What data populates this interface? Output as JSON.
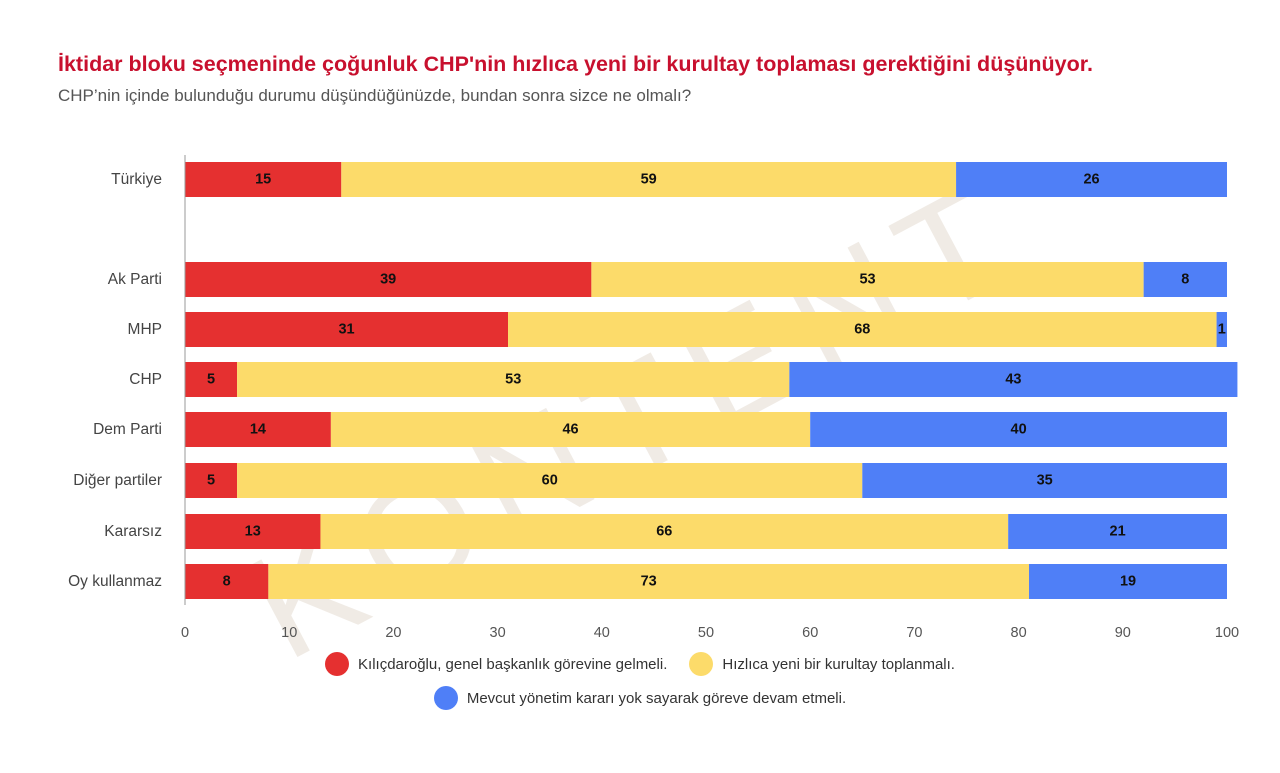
{
  "header": {
    "title": "İktidar bloku seçmeninde çoğunluk CHP'nin hızlıca yeni bir kurultay toplaması gerektiğini düşünüyor.",
    "subtitle": "CHP’nin içinde bulunduğu durumu düşündüğünüzde, bundan sonra sizce ne olmalı?"
  },
  "watermark": "KONTENT",
  "chart_data": {
    "type": "bar",
    "orientation": "horizontal",
    "stacked": true,
    "categories": [
      "Türkiye",
      "Ak Parti",
      "MHP",
      "CHP",
      "Dem Parti",
      "Diğer partiler",
      "Kararsız",
      "Oy kullanmaz"
    ],
    "series": [
      {
        "name": "Kılıçdaroğlu, genel başkanlık görevine gelmeli.",
        "color": "#e53030",
        "values": [
          15,
          39,
          31,
          5,
          14,
          5,
          13,
          8
        ]
      },
      {
        "name": "Hızlıca yeni bir kurultay toplanmalı.",
        "color": "#fcdb6a",
        "values": [
          59,
          53,
          68,
          53,
          46,
          60,
          66,
          73
        ]
      },
      {
        "name": "Mevcut yönetim kararı yok sayarak göreve devam etmeli.",
        "color": "#4f7ff7",
        "values": [
          26,
          8,
          1,
          43,
          40,
          35,
          21,
          19
        ]
      }
    ],
    "xlim": [
      0,
      100
    ],
    "xticks": [
      "0",
      "10",
      "20",
      "30",
      "40",
      "50",
      "60",
      "70",
      "80",
      "90",
      "100"
    ],
    "legend_position": "bottom",
    "grid": false
  }
}
